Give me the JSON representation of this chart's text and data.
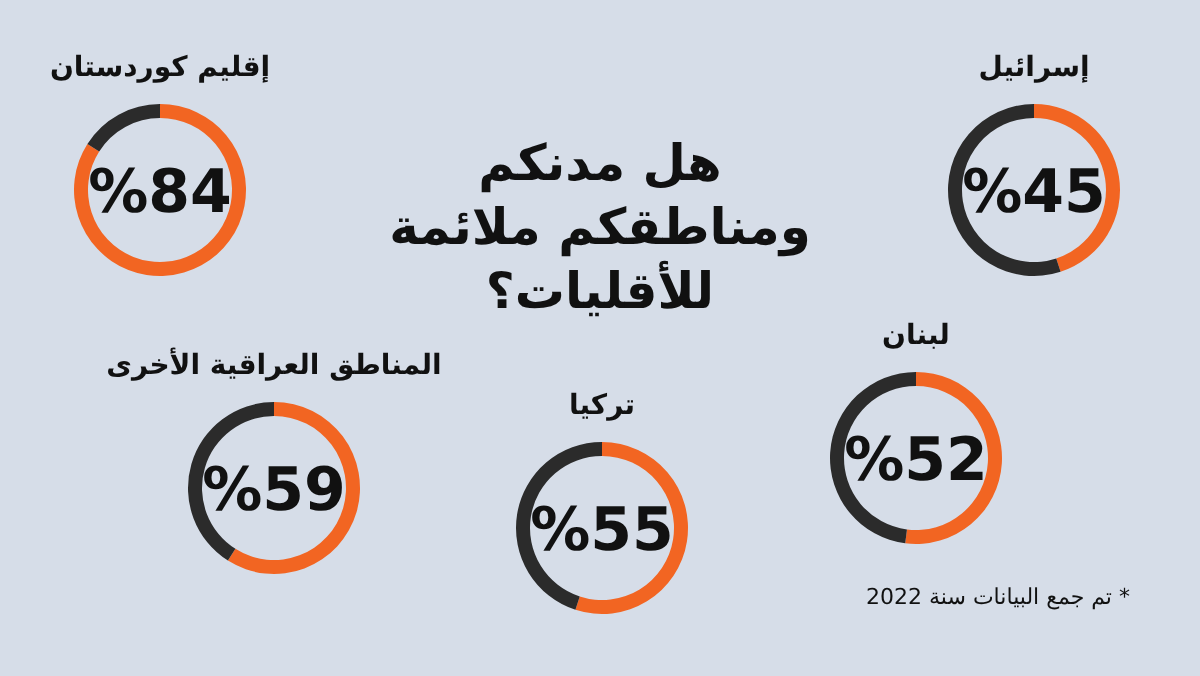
{
  "chart_data": [
    {
      "type": "other",
      "title": "هل مدنكم ومناطقكم ملائمة للأقليات؟",
      "annotations": [
        "* تم جمع البيانات سنة 2022"
      ]
    },
    {
      "type": "donut",
      "title": "إقليم كوردستان",
      "categories": [
        null,
        null
      ],
      "values": [
        84,
        16
      ],
      "colors": [
        "#f26522",
        "#2b2b2b"
      ],
      "value_labels": [
        "%84",
        null
      ]
    },
    {
      "type": "donut",
      "title": "إسرائيل",
      "categories": [
        null,
        null
      ],
      "values": [
        45,
        55
      ],
      "colors": [
        "#f26522",
        "#2b2b2b"
      ],
      "value_labels": [
        "%45",
        null
      ]
    },
    {
      "type": "donut",
      "title": "المناطق العراقية الأخرى",
      "categories": [
        null,
        null
      ],
      "values": [
        59,
        41
      ],
      "colors": [
        "#f26522",
        "#2b2b2b"
      ],
      "value_labels": [
        "%59",
        null
      ]
    },
    {
      "type": "donut",
      "title": "تركيا",
      "categories": [
        null,
        null
      ],
      "values": [
        55,
        45
      ],
      "colors": [
        "#f26522",
        "#2b2b2b"
      ],
      "value_labels": [
        "%55",
        null
      ]
    },
    {
      "type": "donut",
      "title": "لبنان",
      "categories": [
        null,
        null
      ],
      "values": [
        52,
        48
      ],
      "colors": [
        "#f26522",
        "#2b2b2b"
      ],
      "value_labels": [
        "%52",
        null
      ]
    }
  ]
}
